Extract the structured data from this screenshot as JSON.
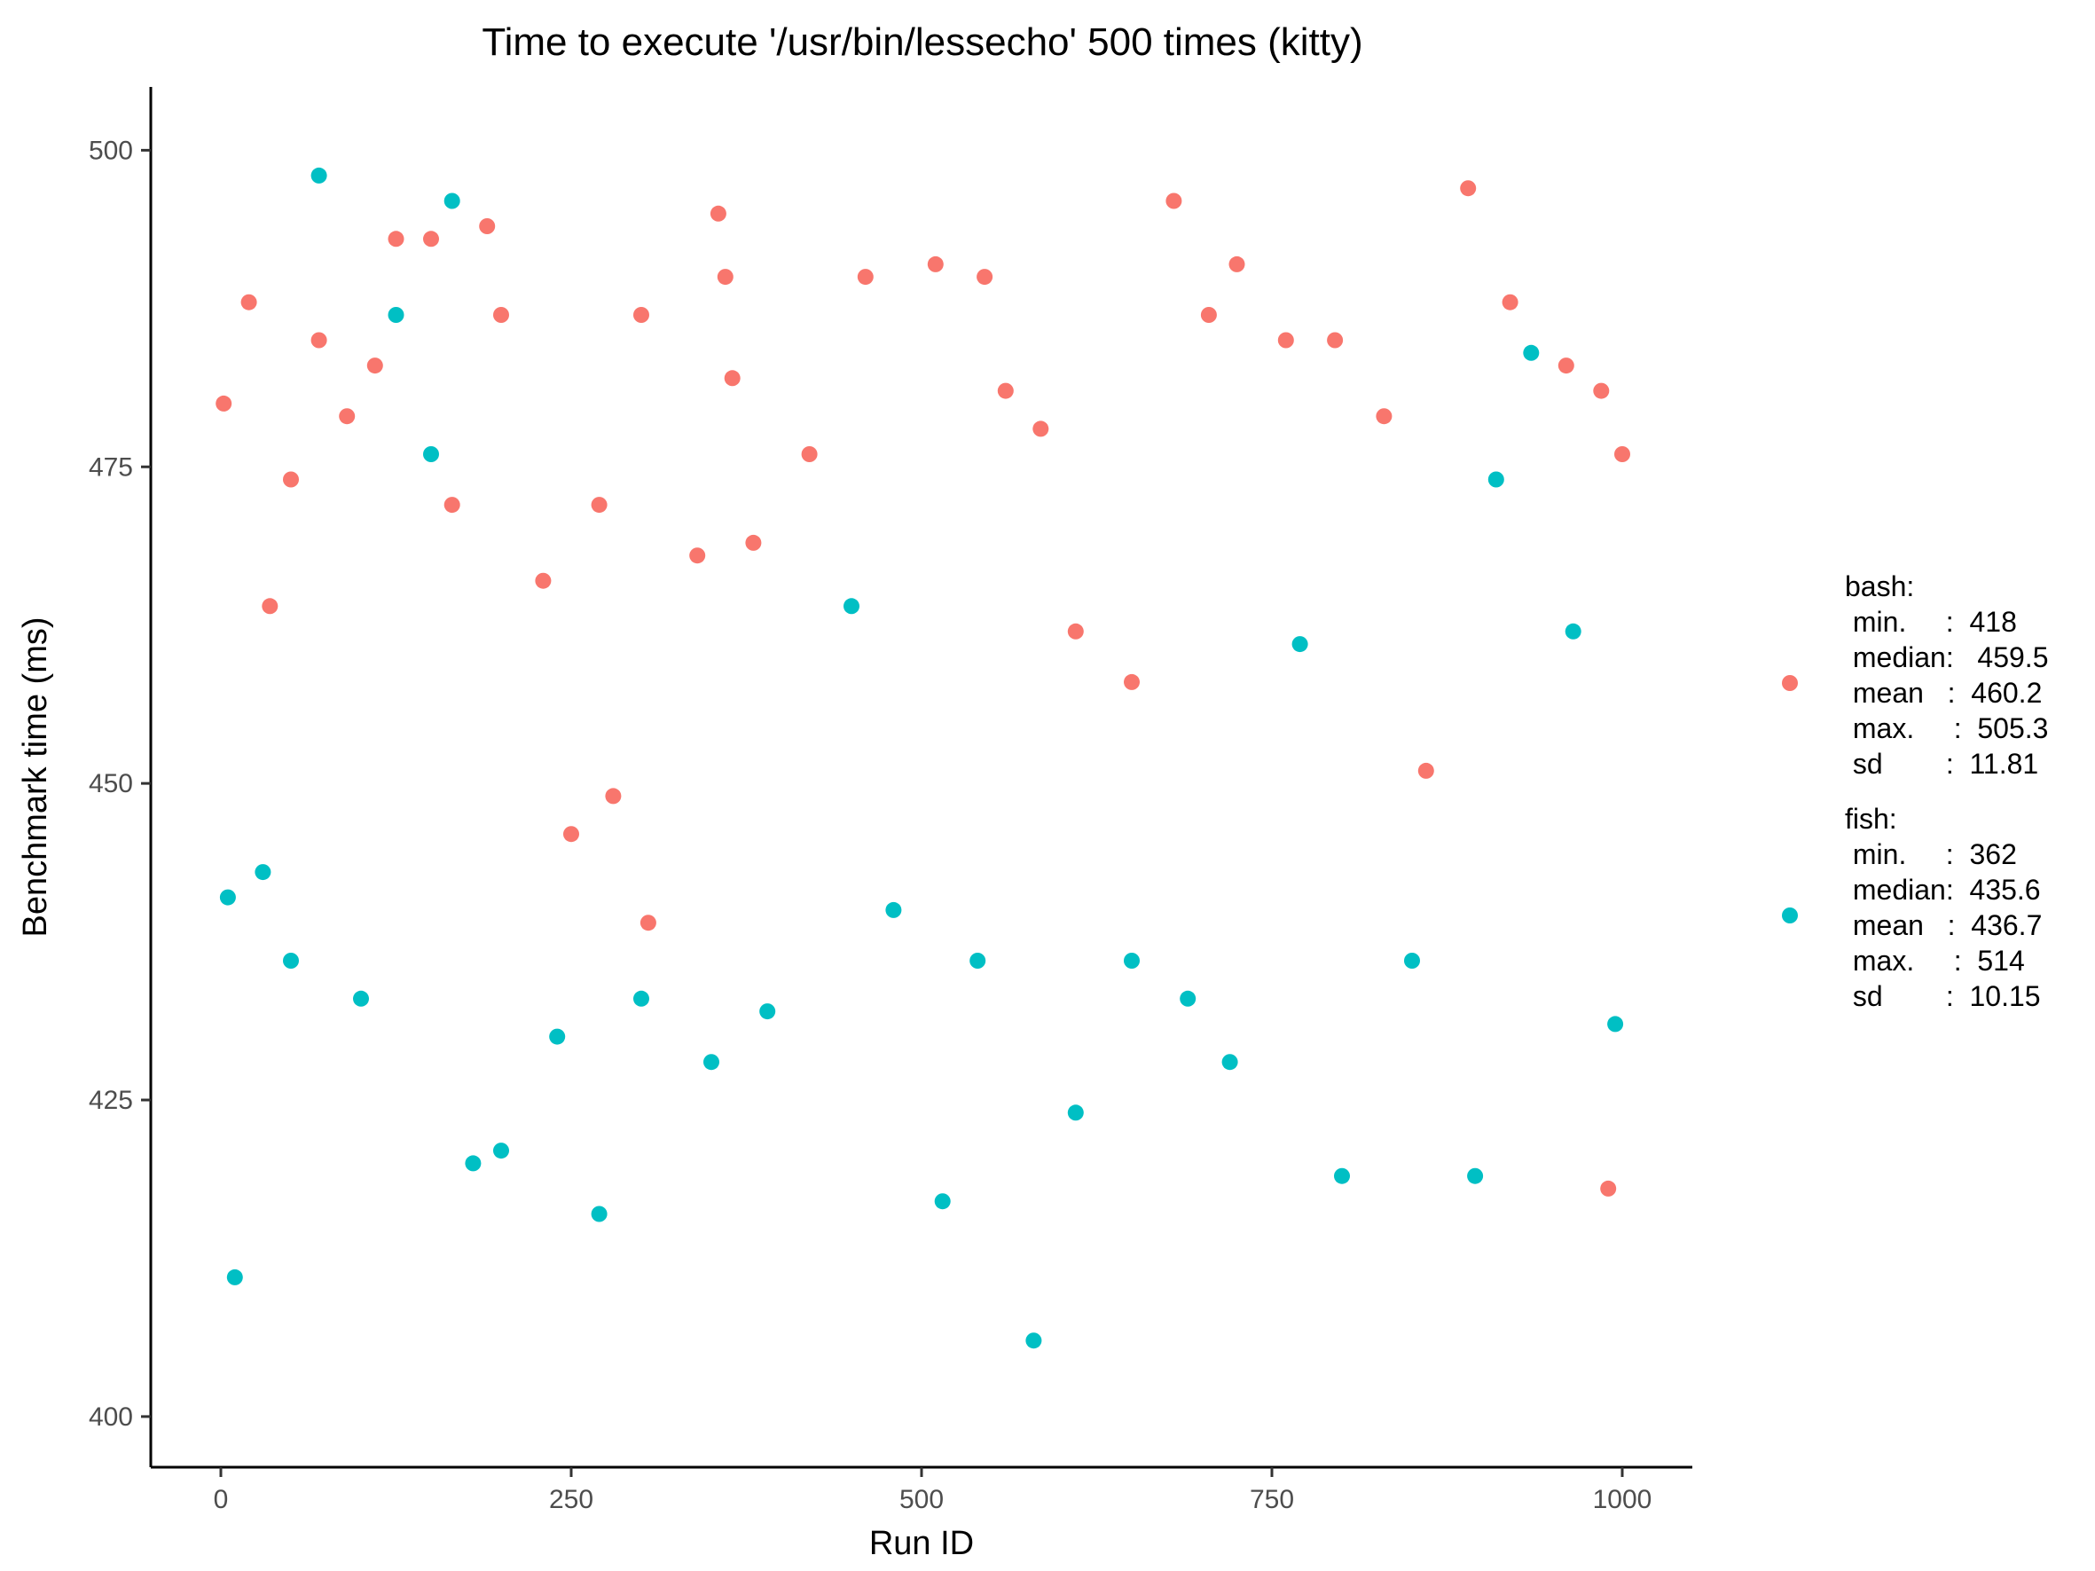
{
  "chart_data": {
    "type": "scatter",
    "title": "Time to execute '/usr/bin/lessecho' 500 times (kitty)",
    "xlabel": "Run ID",
    "ylabel": "Benchmark time (ms)",
    "xlim": [
      -50,
      1050
    ],
    "ylim": [
      396,
      505
    ],
    "x_ticks": [
      0,
      250,
      500,
      750,
      1000
    ],
    "y_ticks": [
      400,
      425,
      450,
      475,
      500
    ],
    "grid": false,
    "legend_position": "right",
    "series": [
      {
        "name": "bash",
        "color": "#F8766D",
        "legend_lines": [
          "bash:",
          " min.     :  418",
          " median:   459.5",
          " mean   :  460.2",
          " max.     :  505.3",
          " sd        :  11.81"
        ],
        "x": [
          2,
          20,
          35,
          50,
          70,
          90,
          110,
          125,
          150,
          165,
          190,
          200,
          230,
          250,
          270,
          280,
          300,
          305,
          340,
          355,
          360,
          365,
          380,
          420,
          460,
          510,
          545,
          560,
          585,
          610,
          650,
          680,
          705,
          725,
          760,
          795,
          830,
          860,
          890,
          920,
          960,
          985,
          990,
          1000
        ],
        "y": [
          480,
          488,
          464,
          474,
          485,
          479,
          483,
          493,
          493,
          472,
          494,
          487,
          466,
          446,
          472,
          449,
          487,
          439,
          468,
          495,
          490,
          482,
          469,
          476,
          490,
          491,
          490,
          481,
          478,
          462,
          458,
          496,
          487,
          491,
          485,
          485,
          479,
          451,
          497,
          488,
          483,
          481,
          418,
          476
        ]
      },
      {
        "name": "fish",
        "color": "#00BFC4",
        "legend_lines": [
          "fish:",
          " min.     :  362",
          " median:  435.6",
          " mean   :  436.7",
          " max.     :  514",
          " sd        :  10.15"
        ],
        "x": [
          5,
          10,
          30,
          50,
          70,
          100,
          125,
          150,
          165,
          180,
          200,
          240,
          270,
          300,
          350,
          390,
          450,
          480,
          515,
          540,
          580,
          610,
          650,
          690,
          720,
          770,
          800,
          850,
          895,
          910,
          935,
          965,
          995
        ],
        "y": [
          441,
          411,
          443,
          436,
          498,
          433,
          487,
          476,
          496,
          420,
          421,
          430,
          416,
          433,
          428,
          432,
          464,
          440,
          417,
          436,
          406,
          424,
          436,
          433,
          428,
          461,
          419,
          436,
          419,
          474,
          484,
          462,
          431
        ]
      }
    ]
  }
}
